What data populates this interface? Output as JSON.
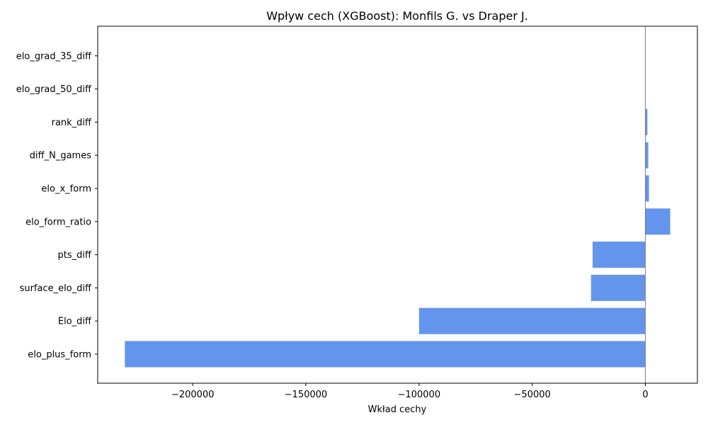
{
  "chart_data": {
    "type": "bar",
    "orientation": "horizontal",
    "title": "Wpływ cech (XGBoost): Monfils G. vs Draper J.",
    "xlabel": "Wkład cechy",
    "ylabel": "",
    "categories": [
      "elo_plus_form",
      "Elo_diff",
      "surface_elo_diff",
      "pts_diff",
      "elo_form_ratio",
      "elo_x_form",
      "diff_N_games",
      "rank_diff",
      "elo_grad_50_diff",
      "elo_grad_35_diff"
    ],
    "values": [
      -230000,
      -100000,
      -24000,
      -23300,
      11000,
      1600,
      1300,
      900,
      0,
      0
    ],
    "xlim": [
      -242000,
      23000
    ],
    "xticks": [
      -200000,
      -150000,
      -100000,
      -50000,
      0
    ],
    "xtick_labels": [
      "−200000",
      "−150000",
      "−100000",
      "−50000",
      "0"
    ],
    "grid": false,
    "zero_line": true,
    "bar_color": "#6495ED"
  }
}
